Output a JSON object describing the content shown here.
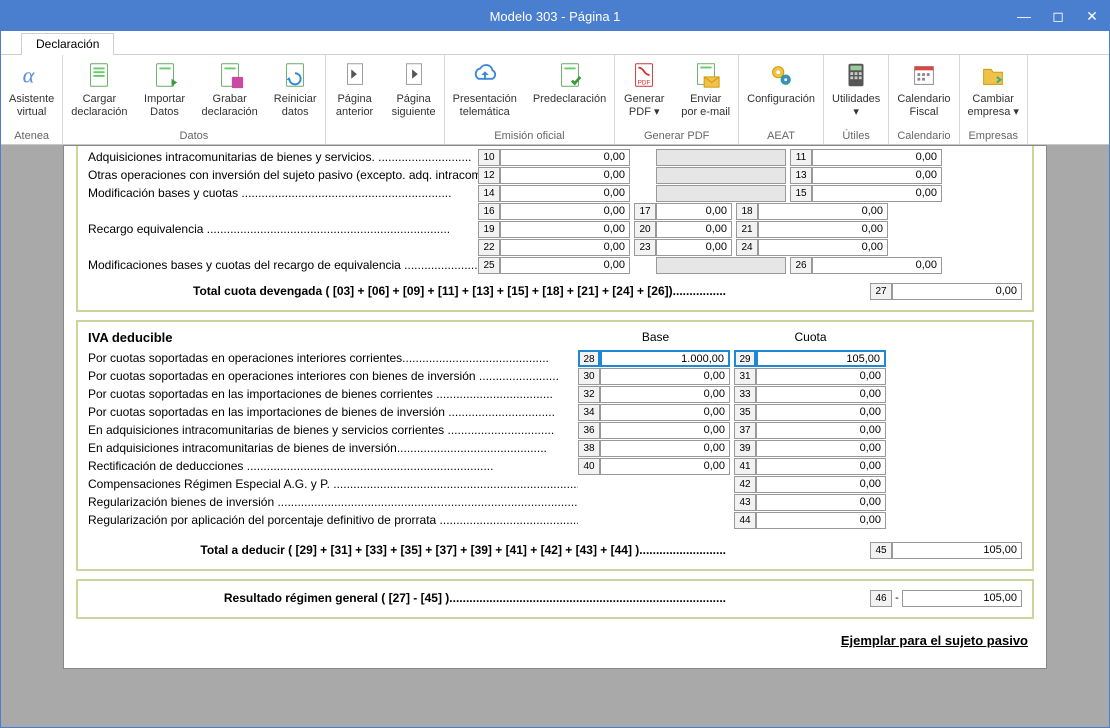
{
  "window": {
    "title": "Modelo 303 - Página 1"
  },
  "tabs": {
    "declaracion": "Declaración"
  },
  "ribbon": {
    "groups": [
      {
        "title": "Atenea",
        "buttons": [
          {
            "name": "asistente-virtual",
            "l1": "Asistente",
            "l2": "virtual",
            "icon": "alpha"
          }
        ]
      },
      {
        "title": "Datos",
        "buttons": [
          {
            "name": "cargar-declaracion",
            "l1": "Cargar",
            "l2": "declaración",
            "icon": "doc-green"
          },
          {
            "name": "importar-datos",
            "l1": "Importar",
            "l2": "Datos",
            "icon": "doc-green-arrow"
          },
          {
            "name": "grabar-declaracion",
            "l1": "Grabar",
            "l2": "declaración",
            "icon": "doc-save"
          },
          {
            "name": "reiniciar-datos",
            "l1": "Reiniciar",
            "l2": "datos",
            "icon": "doc-refresh"
          }
        ]
      },
      {
        "title": "",
        "buttons": [
          {
            "name": "pagina-anterior",
            "l1": "Página",
            "l2": "anterior",
            "icon": "page-prev"
          },
          {
            "name": "pagina-siguiente",
            "l1": "Página",
            "l2": "siguiente",
            "icon": "page-next"
          }
        ]
      },
      {
        "title": "Emisión oficial",
        "buttons": [
          {
            "name": "presentacion-telematica",
            "l1": "Presentación",
            "l2": "telemática",
            "icon": "cloud-up"
          },
          {
            "name": "predeclaracion",
            "l1": "Predeclaración",
            "l2": "",
            "icon": "doc-check"
          }
        ]
      },
      {
        "title": "Generar PDF",
        "buttons": [
          {
            "name": "generar-pdf",
            "l1": "Generar",
            "l2": "PDF ▾",
            "icon": "pdf"
          },
          {
            "name": "enviar-email",
            "l1": "Enviar",
            "l2": "por e-mail",
            "icon": "mail"
          }
        ]
      },
      {
        "title": "AEAT",
        "buttons": [
          {
            "name": "configuracion",
            "l1": "Configuración",
            "l2": "",
            "icon": "gears"
          }
        ]
      },
      {
        "title": "Útiles",
        "buttons": [
          {
            "name": "utilidades",
            "l1": "Utilidades",
            "l2": "▾",
            "icon": "calc"
          }
        ]
      },
      {
        "title": "Calendario",
        "buttons": [
          {
            "name": "calendario-fiscal",
            "l1": "Calendario",
            "l2": "Fiscal",
            "icon": "calendar"
          }
        ]
      },
      {
        "title": "Empresas",
        "buttons": [
          {
            "name": "cambiar-empresa",
            "l1": "Cambiar",
            "l2": "empresa ▾",
            "icon": "folder"
          }
        ]
      }
    ]
  },
  "top_rows": [
    {
      "label": "Adquisiciones intracomunitarias de bienes y servicios. ............................",
      "c": [
        [
          "10",
          "0,00"
        ],
        [
          null,
          null
        ],
        [
          "11",
          "0,00"
        ]
      ]
    },
    {
      "label": "Otras operaciones con inversión del sujeto pasivo (excepto. adq. intracom) ....",
      "c": [
        [
          "12",
          "0,00"
        ],
        [
          null,
          null
        ],
        [
          "13",
          "0,00"
        ]
      ]
    },
    {
      "label": "Modificación bases y cuotas ...............................................................",
      "c": [
        [
          "14",
          "0,00"
        ],
        [
          null,
          null
        ],
        [
          "15",
          "0,00"
        ]
      ]
    },
    {
      "label": "",
      "c": [
        [
          "16",
          "0,00"
        ],
        [
          "17",
          "0,00"
        ],
        [
          "18",
          "0,00"
        ]
      ]
    },
    {
      "label": "Recargo equivalencia .........................................................................",
      "c": [
        [
          "19",
          "0,00"
        ],
        [
          "20",
          "0,00"
        ],
        [
          "21",
          "0,00"
        ]
      ]
    },
    {
      "label": "",
      "c": [
        [
          "22",
          "0,00"
        ],
        [
          "23",
          "0,00"
        ],
        [
          "24",
          "0,00"
        ]
      ]
    },
    {
      "label": "Modificaciones bases y cuotas del recargo de equivalencia ......................",
      "c": [
        [
          "25",
          "0,00"
        ],
        [
          null,
          null
        ],
        [
          "26",
          "0,00"
        ]
      ]
    }
  ],
  "total_devengada": {
    "label": "Total cuota devengada ( [03] + [06] + [09] + [11] + [13] + [15] + [18] + [21] + [24] + [26])................",
    "num": "27",
    "val": "0,00"
  },
  "deducible": {
    "title": "IVA deducible",
    "col_base": "Base",
    "col_cuota": "Cuota",
    "rows": [
      {
        "label": "Por cuotas soportadas en operaciones interiores corrientes............................................",
        "b": [
          "28",
          "1.000,00"
        ],
        "q": [
          "29",
          "105,00"
        ],
        "hl": true
      },
      {
        "label": "Por cuotas soportadas en operaciones interiores con bienes de inversión ........................",
        "b": [
          "30",
          "0,00"
        ],
        "q": [
          "31",
          "0,00"
        ]
      },
      {
        "label": "Por cuotas soportadas en las importaciones de bienes corrientes ...................................",
        "b": [
          "32",
          "0,00"
        ],
        "q": [
          "33",
          "0,00"
        ]
      },
      {
        "label": "Por cuotas soportadas en las importaciones de bienes de inversión ................................",
        "b": [
          "34",
          "0,00"
        ],
        "q": [
          "35",
          "0,00"
        ]
      },
      {
        "label": "En adquisiciones intracomunitarias de bienes y servicios corrientes ................................",
        "b": [
          "36",
          "0,00"
        ],
        "q": [
          "37",
          "0,00"
        ]
      },
      {
        "label": "En adquisiciones intracomunitarias de bienes de inversión.............................................",
        "b": [
          "38",
          "0,00"
        ],
        "q": [
          "39",
          "0,00"
        ]
      },
      {
        "label": "Rectificación de deducciones ..........................................................................",
        "b": [
          "40",
          "0,00"
        ],
        "q": [
          "41",
          "0,00"
        ]
      },
      {
        "label": "Compensaciones Régimen Especial A.G. y P. .............................................................................",
        "q": [
          "42",
          "0,00"
        ]
      },
      {
        "label": "Regularización bienes de inversión ..........................................................................................",
        "q": [
          "43",
          "0,00"
        ]
      },
      {
        "label": "Regularización por aplicación del porcentaje definitivo de prorrata ............................................................",
        "q": [
          "44",
          "0,00"
        ]
      }
    ],
    "total": {
      "label": "Total a deducir ( [29] + [31] + [33] + [35] + [37] + [39] + [41] + [42] + [43] + [44] )..........................",
      "num": "45",
      "val": "105,00"
    }
  },
  "resultado": {
    "label": "Resultado régimen general ( [27] - [45] )...................................................................................",
    "num": "46",
    "sep": "-",
    "val": "105,00"
  },
  "footer_link": "Ejemplar para el sujeto pasivo",
  "colors": {
    "accent": "#4a7ecf",
    "block_border": "#c9d89a",
    "highlight": "#1e88d4"
  }
}
